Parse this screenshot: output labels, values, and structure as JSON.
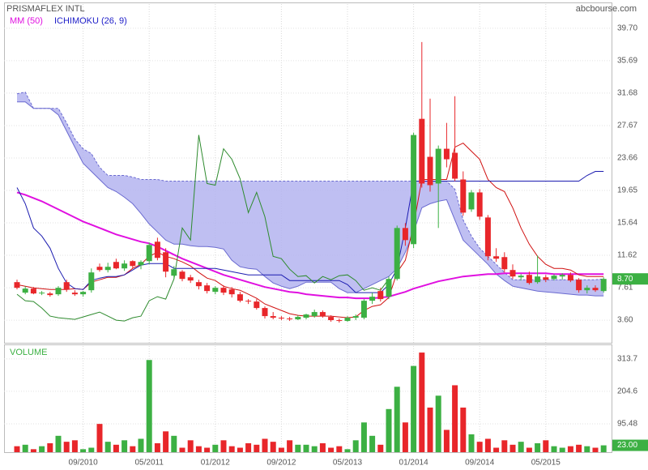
{
  "chart_data": [
    {
      "type": "candlestick",
      "title": "PRISMAFLEX INTL",
      "source": "abcbourse.com",
      "categories": [
        null,
        null,
        null,
        null,
        null,
        null,
        null,
        null,
        "09/2010",
        null,
        null,
        null,
        null,
        null,
        null,
        null,
        "05/2011",
        null,
        null,
        null,
        null,
        null,
        null,
        null,
        "01/2012",
        null,
        null,
        null,
        null,
        null,
        null,
        null,
        "09/2012",
        null,
        null,
        null,
        null,
        null,
        null,
        null,
        "05/2013",
        null,
        null,
        null,
        null,
        null,
        null,
        null,
        "01/2014",
        null,
        null,
        null,
        null,
        null,
        null,
        null,
        "09/2014",
        null,
        null,
        null,
        null,
        null,
        null,
        null,
        "05/2015",
        null,
        null,
        null,
        null,
        null,
        null,
        null
      ],
      "open": [
        8.3,
        7.0,
        7.5,
        6.9,
        6.9,
        6.8,
        8.3,
        7.0,
        6.8,
        7.3,
        10.2,
        9.8,
        10.8,
        10.0,
        10.9,
        10.4,
        10.9,
        13.3,
        12.0,
        9.1,
        9.6,
        8.9,
        8.3,
        7.9,
        7.1,
        7.6,
        7.4,
        6.8,
        6.0,
        5.9,
        5.1,
        4.1,
        3.9,
        3.8,
        3.7,
        3.9,
        4.1,
        4.6,
        4.0,
        3.6,
        3.5,
        3.9,
        3.9,
        6.0,
        7.2,
        6.5,
        8.7,
        15.0,
        13.0,
        28.5,
        23.8,
        20.5,
        24.8,
        24.3,
        21.0,
        17.3,
        19.4,
        16.3,
        11.5,
        11.4,
        9.8,
        8.9,
        9.2,
        8.3,
        8.9,
        8.7,
        9.0,
        9.2,
        8.6,
        7.3,
        7.6,
        7.2
      ],
      "high": [
        8.6,
        7.8,
        7.7,
        7.2,
        7.1,
        7.8,
        8.6,
        7.3,
        7.2,
        10.0,
        10.6,
        10.7,
        11.2,
        11.0,
        11.0,
        11.0,
        13.2,
        13.8,
        12.5,
        10.3,
        9.8,
        9.2,
        8.6,
        8.2,
        7.8,
        7.9,
        7.7,
        7.1,
        6.2,
        6.2,
        5.3,
        4.6,
        4.1,
        4.0,
        4.2,
        4.4,
        4.9,
        4.8,
        4.2,
        3.8,
        4.1,
        4.3,
        6.2,
        7.0,
        7.6,
        9.0,
        15.3,
        15.6,
        26.8,
        38.0,
        31.0,
        25.2,
        28.0,
        31.3,
        22.0,
        19.7,
        19.8,
        16.6,
        12.5,
        12.0,
        10.5,
        9.3,
        9.6,
        11.6,
        9.2,
        9.3,
        9.4,
        9.5,
        8.8,
        7.9,
        7.9,
        8.9
      ],
      "low": [
        7.4,
        6.8,
        6.8,
        6.7,
        6.5,
        6.6,
        7.1,
        6.6,
        6.5,
        7.0,
        9.6,
        9.5,
        9.9,
        9.7,
        10.0,
        9.9,
        10.5,
        11.0,
        8.9,
        8.7,
        8.4,
        8.2,
        7.4,
        6.9,
        6.8,
        6.7,
        6.4,
        5.8,
        5.6,
        4.9,
        3.8,
        3.7,
        3.6,
        3.5,
        3.6,
        3.7,
        3.9,
        3.9,
        3.4,
        3.3,
        3.4,
        3.6,
        3.7,
        5.6,
        5.9,
        6.2,
        8.5,
        12.8,
        12.5,
        20.0,
        19.5,
        15.0,
        22.5,
        20.8,
        16.5,
        17.0,
        16.0,
        11.0,
        10.8,
        9.5,
        8.7,
        8.5,
        8.0,
        8.1,
        8.3,
        8.5,
        8.6,
        8.3,
        7.0,
        6.9,
        7.1,
        7.0
      ],
      "close": [
        7.6,
        7.5,
        6.9,
        7.0,
        6.7,
        7.6,
        7.4,
        6.8,
        7.1,
        9.5,
        9.8,
        10.2,
        10.0,
        10.6,
        10.3,
        10.8,
        12.9,
        11.3,
        9.6,
        9.9,
        8.7,
        8.5,
        7.8,
        7.2,
        7.6,
        7.0,
        6.8,
        6.0,
        5.9,
        5.1,
        4.1,
        3.9,
        3.8,
        3.7,
        4.0,
        4.3,
        4.6,
        4.1,
        3.6,
        3.5,
        3.9,
        4.1,
        6.0,
        6.5,
        6.2,
        8.7,
        15.0,
        13.5,
        26.5,
        20.5,
        20.3,
        24.8,
        23.5,
        21.1,
        16.9,
        19.4,
        16.4,
        11.5,
        11.2,
        9.9,
        9.0,
        9.1,
        8.2,
        9.0,
        8.6,
        9.1,
        9.2,
        8.5,
        7.3,
        7.6,
        7.3,
        8.7
      ],
      "up_color": "#3cb043",
      "down_color": "#e8262a",
      "ylim": [
        0.8,
        42.7
      ],
      "yticks": [
        {
          "value": 3.6,
          "label": "3.60"
        },
        7.61,
        11.62,
        15.64,
        19.65,
        23.66,
        27.67,
        31.68,
        35.69,
        {
          "value": 39.7,
          "label": "39.70"
        }
      ],
      "grid": true,
      "last_value": {
        "value": 8.7,
        "label": "8.70"
      },
      "series": [
        {
          "name": "MM (50)",
          "color": "#e010e0",
          "values": [
            19.4,
            19.1,
            18.7,
            18.3,
            17.8,
            17.3,
            16.8,
            16.3,
            15.8,
            15.4,
            15.0,
            14.6,
            14.2,
            13.9,
            13.6,
            13.3,
            13.1,
            12.7,
            12.2,
            11.7,
            11.2,
            10.8,
            10.4,
            10.0,
            9.6,
            9.2,
            8.9,
            8.6,
            8.3,
            8.0,
            7.7,
            7.5,
            7.3,
            7.1,
            7.0,
            6.8,
            6.7,
            6.6,
            6.5,
            6.4,
            6.4,
            6.3,
            6.3,
            6.3,
            6.4,
            6.5,
            6.8,
            7.1,
            7.5,
            7.8,
            8.1,
            8.4,
            8.6,
            8.8,
            9.0,
            9.1,
            9.2,
            9.3,
            9.3,
            9.4,
            9.4,
            9.4,
            9.4,
            9.4,
            9.4,
            9.3,
            9.3,
            9.3,
            9.3,
            9.3,
            9.3,
            9.3
          ]
        },
        {
          "name": "ICHIMOKU (26, 9)",
          "color": "#1c1cc8",
          "lines": [
            {
              "color": "#d01010",
              "values": [
                8.0,
                7.8,
                7.6,
                7.5,
                7.4,
                7.4,
                7.4,
                7.5,
                7.4,
                8.3,
                8.6,
                8.9,
                8.9,
                9.2,
                10.0,
                10.5,
                11.5,
                12.0,
                11.5,
                11.2,
                10.8,
                10.3,
                9.5,
                8.8,
                8.5,
                7.8,
                7.5,
                7.3,
                6.8,
                6.3,
                5.6,
                5.2,
                4.8,
                4.4,
                4.2,
                4.1,
                4.1,
                4.1,
                4.1,
                4.0,
                3.9,
                4.0,
                4.8,
                5.3,
                5.5,
                6.4,
                9.5,
                11.0,
                15.3,
                21.0,
                21.0,
                21.0,
                21.0,
                25.0,
                25.5,
                24.5,
                23.5,
                21.0,
                20.0,
                19.5,
                17.5,
                15.0,
                13.0,
                11.5,
                10.5,
                10.0,
                10.0,
                9.8,
                9.2,
                9.0,
                9.0,
                9.0
              ]
            },
            {
              "color": "#1c1cb0",
              "values": [
                20.0,
                18.0,
                15.0,
                14.0,
                12.5,
                10.0,
                8.2,
                7.5,
                7.4,
                8.5,
                8.8,
                9.0,
                9.0,
                9.2,
                9.8,
                10.4,
                10.6,
                10.6,
                10.6,
                10.0,
                10.0,
                10.0,
                10.0,
                10.0,
                10.0,
                9.8,
                9.6,
                9.4,
                9.2,
                9.2,
                9.2,
                9.2,
                9.2,
                8.5,
                8.5,
                8.5,
                8.5,
                8.5,
                8.5,
                8.5,
                8.0,
                7.0,
                7.0,
                7.0,
                7.0,
                8.0,
                10.0,
                15.0,
                20.8,
                20.8,
                20.8,
                20.8,
                20.8,
                20.8,
                20.8,
                20.8,
                20.8,
                20.8,
                20.8,
                20.8,
                20.8,
                20.8,
                20.8,
                20.8,
                20.8,
                20.8,
                20.8,
                20.8,
                20.8,
                21.5,
                22.0,
                22.0
              ]
            },
            {
              "color": "#2e8b2e",
              "values": [
                6.8,
                6.0,
                5.9,
                5.1,
                4.1,
                3.9,
                3.8,
                3.7,
                4.0,
                4.3,
                4.6,
                4.1,
                3.6,
                3.5,
                3.9,
                4.1,
                6.0,
                6.5,
                6.2,
                8.7,
                15.0,
                13.5,
                26.5,
                20.5,
                20.3,
                24.8,
                23.5,
                21.1,
                16.9,
                19.4,
                16.4,
                11.5,
                11.2,
                9.9,
                9.0,
                9.1,
                8.2,
                9.0,
                8.6,
                9.1,
                9.2,
                8.5,
                7.3,
                7.6,
                7.3,
                8.7,
                null,
                null,
                null,
                null,
                null,
                null,
                null,
                null,
                null,
                null,
                null,
                null,
                null,
                null,
                null,
                null,
                null,
                null,
                null,
                null,
                null,
                null,
                null,
                null,
                null,
                null
              ]
            }
          ],
          "cloud": {
            "color": "#b4b4f0",
            "edge_color": "#6a6ad0",
            "a": [
              31.6,
              31.8,
              29.8,
              29.8,
              29.8,
              29.8,
              28.0,
              26.0,
              24.8,
              24.2,
              22.5,
              21.5,
              21.5,
              21.5,
              21.3,
              21.0,
              21.0,
              21.0,
              20.8,
              20.8,
              20.8,
              20.8,
              20.8,
              20.8,
              20.8,
              20.8,
              20.8,
              20.8,
              20.8,
              20.8,
              20.8,
              20.8,
              20.8,
              20.8,
              20.8,
              20.8,
              20.8,
              20.8,
              20.8,
              20.8,
              20.8,
              20.8,
              20.8,
              20.8,
              20.8,
              20.8,
              20.8,
              20.8,
              20.8,
              20.8,
              20.8,
              20.8,
              20.8,
              19.8,
              16.0,
              14.0,
              12.5,
              11.5,
              10.5,
              9.5,
              8.6,
              8.6,
              8.6,
              8.6,
              8.6,
              8.6,
              8.6,
              8.6,
              8.6,
              8.6,
              8.6,
              8.7
            ],
            "b": [
              30.6,
              30.6,
              29.8,
              29.8,
              29.8,
              29.0,
              27.0,
              25.0,
              23.0,
              22.0,
              21.0,
              20.0,
              19.5,
              18.8,
              18.0,
              16.8,
              15.5,
              14.5,
              13.5,
              13.0,
              13.0,
              12.8,
              12.7,
              12.7,
              12.6,
              12.4,
              11.0,
              10.2,
              10.0,
              9.9,
              9.0,
              8.2,
              7.8,
              7.5,
              7.8,
              8.3,
              8.3,
              8.3,
              8.3,
              7.5,
              7.0,
              7.0,
              7.5,
              8.0,
              8.5,
              9.0,
              10.0,
              12.0,
              14.5,
              17.5,
              18.0,
              18.3,
              18.5,
              16.0,
              13.5,
              12.5,
              11.5,
              10.5,
              9.3,
              8.5,
              7.8,
              7.6,
              7.4,
              7.2,
              7.1,
              7.0,
              6.9,
              6.8,
              6.7,
              6.7,
              6.6,
              6.6
            ]
          }
        }
      ]
    },
    {
      "type": "bar",
      "title": "VOLUME",
      "values": [
        20,
        25,
        10,
        20,
        30,
        55,
        35,
        40,
        10,
        15,
        95,
        35,
        25,
        40,
        20,
        45,
        310,
        30,
        70,
        55,
        15,
        40,
        20,
        15,
        25,
        40,
        20,
        15,
        30,
        25,
        45,
        35,
        15,
        40,
        25,
        25,
        20,
        30,
        15,
        20,
        10,
        40,
        100,
        55,
        25,
        145,
        220,
        100,
        290,
        335,
        150,
        190,
        75,
        225,
        150,
        60,
        35,
        45,
        15,
        40,
        25,
        35,
        15,
        30,
        40,
        20,
        15,
        20,
        25,
        20,
        15,
        23
      ],
      "up_color": "#3cb043",
      "down_color": "#e8262a",
      "ylim": [
        0,
        357
      ],
      "yticks": [
        95.48,
        204.6,
        313.7
      ],
      "grid": true,
      "last_value": {
        "value": 23,
        "label": "23.00"
      }
    }
  ]
}
